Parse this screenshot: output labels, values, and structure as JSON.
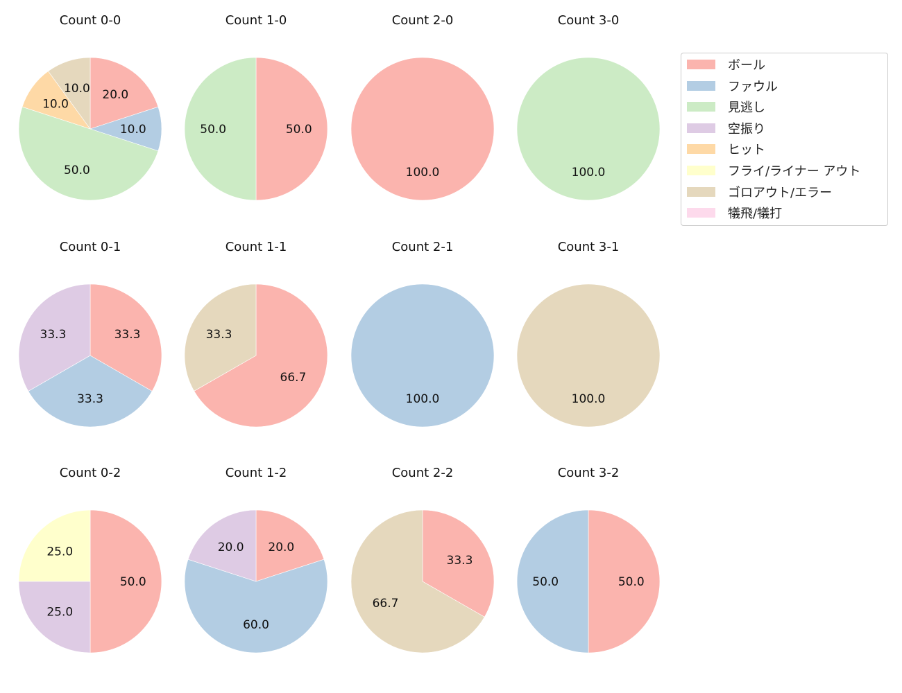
{
  "chart_data": {
    "type": "pie",
    "layout": {
      "rows": 3,
      "cols": 4,
      "start_angle": 90,
      "direction": "clockwise"
    },
    "legend": {
      "position": "upper right",
      "entries": [
        {
          "label": "ボール",
          "color": "#fbb4ae"
        },
        {
          "label": "ファウル",
          "color": "#b3cde3"
        },
        {
          "label": "見逃し",
          "color": "#ccebc5"
        },
        {
          "label": "空振り",
          "color": "#decbe4"
        },
        {
          "label": "ヒット",
          "color": "#fed9a6"
        },
        {
          "label": "フライ/ライナー アウト",
          "color": "#ffffcc"
        },
        {
          "label": "ゴロアウト/エラー",
          "color": "#e5d8bd"
        },
        {
          "label": "犠飛/犠打",
          "color": "#fddaec"
        }
      ]
    },
    "charts": [
      {
        "title": "Count 0-0",
        "row": 0,
        "col": 0,
        "slices": [
          {
            "label": "ボール",
            "value": 20.0
          },
          {
            "label": "ファウル",
            "value": 10.0
          },
          {
            "label": "見逃し",
            "value": 50.0
          },
          {
            "label": "ヒット",
            "value": 10.0
          },
          {
            "label": "ゴロアウト/エラー",
            "value": 10.0
          }
        ]
      },
      {
        "title": "Count 1-0",
        "row": 0,
        "col": 1,
        "slices": [
          {
            "label": "ボール",
            "value": 50.0
          },
          {
            "label": "見逃し",
            "value": 50.0
          }
        ]
      },
      {
        "title": "Count 2-0",
        "row": 0,
        "col": 2,
        "slices": [
          {
            "label": "ボール",
            "value": 100.0
          }
        ]
      },
      {
        "title": "Count 3-0",
        "row": 0,
        "col": 3,
        "slices": [
          {
            "label": "見逃し",
            "value": 100.0
          }
        ]
      },
      {
        "title": "Count 0-1",
        "row": 1,
        "col": 0,
        "slices": [
          {
            "label": "ボール",
            "value": 33.3
          },
          {
            "label": "ファウル",
            "value": 33.3
          },
          {
            "label": "空振り",
            "value": 33.3
          }
        ]
      },
      {
        "title": "Count 1-1",
        "row": 1,
        "col": 1,
        "slices": [
          {
            "label": "ボール",
            "value": 66.7
          },
          {
            "label": "ゴロアウト/エラー",
            "value": 33.3
          }
        ]
      },
      {
        "title": "Count 2-1",
        "row": 1,
        "col": 2,
        "slices": [
          {
            "label": "ファウル",
            "value": 100.0
          }
        ]
      },
      {
        "title": "Count 3-1",
        "row": 1,
        "col": 3,
        "slices": [
          {
            "label": "ゴロアウト/エラー",
            "value": 100.0
          }
        ]
      },
      {
        "title": "Count 0-2",
        "row": 2,
        "col": 0,
        "slices": [
          {
            "label": "ボール",
            "value": 50.0
          },
          {
            "label": "空振り",
            "value": 25.0
          },
          {
            "label": "フライ/ライナー アウト",
            "value": 25.0
          }
        ]
      },
      {
        "title": "Count 1-2",
        "row": 2,
        "col": 1,
        "slices": [
          {
            "label": "ボール",
            "value": 20.0
          },
          {
            "label": "ファウル",
            "value": 60.0
          },
          {
            "label": "空振り",
            "value": 20.0
          }
        ]
      },
      {
        "title": "Count 2-2",
        "row": 2,
        "col": 2,
        "slices": [
          {
            "label": "ボール",
            "value": 33.3
          },
          {
            "label": "ゴロアウト/エラー",
            "value": 66.7
          }
        ]
      },
      {
        "title": "Count 3-2",
        "row": 2,
        "col": 3,
        "slices": [
          {
            "label": "ボール",
            "value": 50.0
          },
          {
            "label": "ファウル",
            "value": 50.0
          }
        ]
      }
    ]
  }
}
